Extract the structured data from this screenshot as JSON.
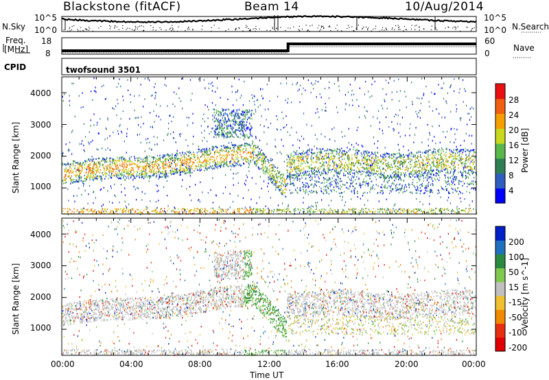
{
  "header": {
    "station": "Blackstone (fitACF)",
    "beam": "Beam 14",
    "date": "10/Aug/2014"
  },
  "top_panels": {
    "nsky_label": "N.Sky",
    "nsky_ticks": [
      "10^5",
      "10^0"
    ],
    "nsearch_label": "N.Search",
    "nsearch_ticks": [
      "10^5",
      "10^0"
    ],
    "freq_label_1": "Freq.",
    "freq_label_2": "[MHz]",
    "freq_ticks": [
      "18",
      "8"
    ],
    "nave_label": "Nave",
    "nave_ticks": [
      "60",
      "0"
    ],
    "cpid_label": "CPID",
    "cpid_value": "twofsound 3501"
  },
  "chart_data": [
    {
      "type": "heatmap",
      "title": "",
      "ylabel": "Slant Range [km]",
      "xlabel": "",
      "ylim": [
        180,
        4500
      ],
      "xlim": [
        0,
        24
      ],
      "yticks": [
        "1000",
        "2000",
        "3000",
        "4000"
      ],
      "colorbar": {
        "label": "Power [dB]",
        "ticks": [
          "4",
          "8",
          "12",
          "16",
          "20",
          "24",
          "28"
        ],
        "colors": [
          "#0000ff",
          "#2e5fbf",
          "#2f7f55",
          "#5ab84a",
          "#c8d81e",
          "#f5a000",
          "#f06010",
          "#e81010"
        ]
      },
      "features": [
        {
          "x": [
            0,
            11
          ],
          "y": [
            1300,
            2100
          ],
          "value": 18,
          "desc": "main band"
        },
        {
          "x": [
            11,
            13
          ],
          "y": [
            800,
            1600
          ],
          "value": 20
        },
        {
          "x": [
            13,
            24
          ],
          "y": [
            1500,
            2300
          ],
          "value": 14
        }
      ]
    },
    {
      "type": "heatmap",
      "title": "",
      "ylabel": "Slant Range [km]",
      "xlabel": "Time UT",
      "ylim": [
        180,
        4500
      ],
      "xlim": [
        0,
        24
      ],
      "yticks": [
        "1000",
        "2000",
        "3000",
        "4000"
      ],
      "xticks": [
        "00:00",
        "04:00",
        "08:00",
        "12:00",
        "16:00",
        "20:00",
        "00:00"
      ],
      "colorbar": {
        "label": "Velocity [m s^-1]",
        "ticks": [
          "200",
          "100",
          "50",
          "15",
          "-15",
          "-50",
          "-100",
          "-200"
        ],
        "colors": [
          "#0020c8",
          "#2070c0",
          "#2a8a40",
          "#80c850",
          "#c0c0c0",
          "#f0c030",
          "#f08a00",
          "#e83010",
          "#e00000"
        ]
      }
    }
  ]
}
